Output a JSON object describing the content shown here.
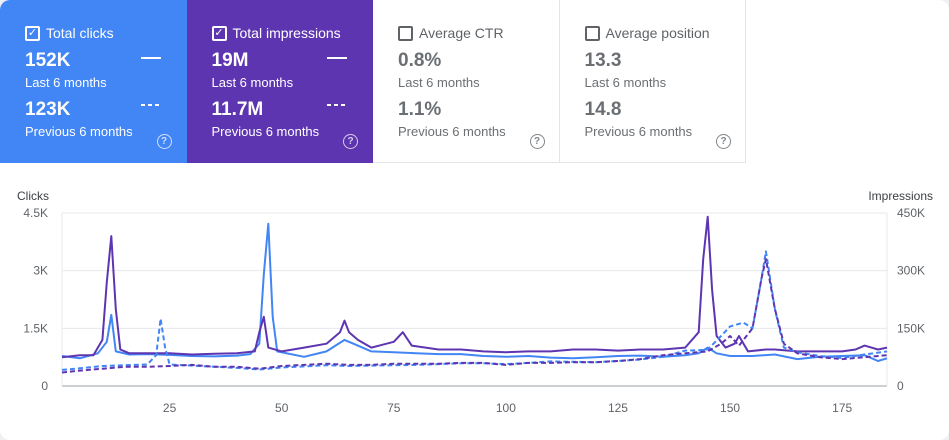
{
  "tiles": [
    {
      "label": "Total clicks",
      "checked": "✓",
      "value_current": "152K",
      "period_current": "Last 6 months",
      "value_previous": "123K",
      "period_previous": "Previous 6 months",
      "help": "?"
    },
    {
      "label": "Total impressions",
      "checked": "✓",
      "value_current": "19M",
      "period_current": "Last 6 months",
      "value_previous": "11.7M",
      "period_previous": "Previous 6 months",
      "help": "?"
    },
    {
      "label": "Average CTR",
      "checked": "",
      "value_current": "0.8%",
      "period_current": "Last 6 months",
      "value_previous": "1.1%",
      "period_previous": "Previous 6 months",
      "help": "?"
    },
    {
      "label": "Average position",
      "checked": "",
      "value_current": "13.3",
      "period_current": "Last 6 months",
      "value_previous": "14.8",
      "period_previous": "Previous 6 months",
      "help": "?"
    }
  ],
  "colors": {
    "clicks": "#4285f4",
    "impressions": "#5e35b1",
    "inactive_text": "#5f6368",
    "grid": "#dadce0"
  },
  "chart_data": {
    "type": "line",
    "xlabel": "",
    "ylabel_left": "Clicks",
    "ylabel_right": "Impressions",
    "xlim": [
      1,
      185
    ],
    "x_ticks": [
      "25",
      "50",
      "75",
      "100",
      "125",
      "150",
      "175"
    ],
    "y_left_ticks": [
      "0",
      "1.5K",
      "3K",
      "4.5K"
    ],
    "y_right_ticks": [
      "0",
      "150K",
      "300K",
      "450K"
    ],
    "ylim_left": [
      0,
      4500
    ],
    "ylim_right": [
      0,
      450000
    ],
    "grid": "horizontal",
    "series": [
      {
        "metric": "clicks",
        "period": "current",
        "style": "solid",
        "axis": "left",
        "points": [
          [
            1,
            780
          ],
          [
            5,
            720
          ],
          [
            9,
            850
          ],
          [
            11,
            1150
          ],
          [
            12,
            1850
          ],
          [
            13,
            900
          ],
          [
            16,
            820
          ],
          [
            20,
            830
          ],
          [
            25,
            810
          ],
          [
            30,
            780
          ],
          [
            35,
            770
          ],
          [
            40,
            790
          ],
          [
            43,
            830
          ],
          [
            45,
            1100
          ],
          [
            46,
            2900
          ],
          [
            47,
            4220
          ],
          [
            48,
            1800
          ],
          [
            49,
            900
          ],
          [
            55,
            760
          ],
          [
            60,
            900
          ],
          [
            64,
            1200
          ],
          [
            66,
            1100
          ],
          [
            70,
            900
          ],
          [
            75,
            880
          ],
          [
            80,
            850
          ],
          [
            85,
            830
          ],
          [
            90,
            830
          ],
          [
            95,
            780
          ],
          [
            100,
            760
          ],
          [
            105,
            780
          ],
          [
            110,
            740
          ],
          [
            115,
            720
          ],
          [
            120,
            750
          ],
          [
            125,
            780
          ],
          [
            130,
            790
          ],
          [
            135,
            760
          ],
          [
            140,
            800
          ],
          [
            143,
            850
          ],
          [
            145,
            1000
          ],
          [
            147,
            850
          ],
          [
            150,
            780
          ],
          [
            155,
            780
          ],
          [
            160,
            820
          ],
          [
            165,
            700
          ],
          [
            170,
            760
          ],
          [
            175,
            780
          ],
          [
            180,
            800
          ],
          [
            183,
            650
          ],
          [
            185,
            720
          ]
        ]
      },
      {
        "metric": "impressions",
        "period": "current",
        "style": "solid",
        "axis": "right",
        "points": [
          [
            1,
            75000
          ],
          [
            5,
            80000
          ],
          [
            8,
            80000
          ],
          [
            10,
            120000
          ],
          [
            11,
            270000
          ],
          [
            12,
            390000
          ],
          [
            13,
            200000
          ],
          [
            14,
            95000
          ],
          [
            16,
            85000
          ],
          [
            20,
            85000
          ],
          [
            25,
            85000
          ],
          [
            30,
            82000
          ],
          [
            35,
            84000
          ],
          [
            40,
            85000
          ],
          [
            44,
            90000
          ],
          [
            45,
            140000
          ],
          [
            46,
            180000
          ],
          [
            47,
            100000
          ],
          [
            50,
            90000
          ],
          [
            55,
            100000
          ],
          [
            60,
            110000
          ],
          [
            63,
            140000
          ],
          [
            64,
            170000
          ],
          [
            65,
            140000
          ],
          [
            67,
            120000
          ],
          [
            70,
            100000
          ],
          [
            75,
            115000
          ],
          [
            77,
            140000
          ],
          [
            79,
            105000
          ],
          [
            85,
            95000
          ],
          [
            90,
            95000
          ],
          [
            95,
            90000
          ],
          [
            100,
            88000
          ],
          [
            105,
            90000
          ],
          [
            110,
            90000
          ],
          [
            115,
            95000
          ],
          [
            120,
            95000
          ],
          [
            125,
            92000
          ],
          [
            130,
            95000
          ],
          [
            135,
            95000
          ],
          [
            140,
            100000
          ],
          [
            143,
            140000
          ],
          [
            144,
            330000
          ],
          [
            145,
            440000
          ],
          [
            146,
            250000
          ],
          [
            147,
            130000
          ],
          [
            149,
            100000
          ],
          [
            151,
            110000
          ],
          [
            152,
            130000
          ],
          [
            154,
            90000
          ],
          [
            158,
            95000
          ],
          [
            160,
            95000
          ],
          [
            165,
            90000
          ],
          [
            170,
            90000
          ],
          [
            175,
            90000
          ],
          [
            178,
            95000
          ],
          [
            180,
            105000
          ],
          [
            183,
            95000
          ],
          [
            185,
            100000
          ]
        ]
      },
      {
        "metric": "clicks",
        "period": "previous",
        "style": "dashed",
        "axis": "left",
        "points": [
          [
            1,
            420
          ],
          [
            5,
            460
          ],
          [
            10,
            520
          ],
          [
            15,
            540
          ],
          [
            20,
            560
          ],
          [
            22,
            800
          ],
          [
            23,
            1750
          ],
          [
            24,
            1000
          ],
          [
            25,
            560
          ],
          [
            30,
            530
          ],
          [
            35,
            500
          ],
          [
            40,
            470
          ],
          [
            45,
            430
          ],
          [
            50,
            480
          ],
          [
            55,
            510
          ],
          [
            60,
            540
          ],
          [
            65,
            520
          ],
          [
            70,
            530
          ],
          [
            75,
            540
          ],
          [
            80,
            550
          ],
          [
            85,
            570
          ],
          [
            90,
            590
          ],
          [
            95,
            590
          ],
          [
            100,
            570
          ],
          [
            105,
            600
          ],
          [
            110,
            640
          ],
          [
            115,
            630
          ],
          [
            120,
            620
          ],
          [
            125,
            650
          ],
          [
            130,
            690
          ],
          [
            135,
            760
          ],
          [
            140,
            920
          ],
          [
            143,
            930
          ],
          [
            145,
            950
          ],
          [
            148,
            1300
          ],
          [
            150,
            1550
          ],
          [
            153,
            1650
          ],
          [
            155,
            1500
          ],
          [
            157,
            2800
          ],
          [
            158,
            3500
          ],
          [
            160,
            2000
          ],
          [
            162,
            1000
          ],
          [
            165,
            880
          ],
          [
            170,
            780
          ],
          [
            175,
            730
          ],
          [
            180,
            820
          ],
          [
            185,
            900
          ]
        ]
      },
      {
        "metric": "impressions",
        "period": "previous",
        "style": "dashed",
        "axis": "right",
        "points": [
          [
            1,
            35000
          ],
          [
            5,
            40000
          ],
          [
            10,
            45000
          ],
          [
            15,
            50000
          ],
          [
            20,
            50000
          ],
          [
            25,
            52000
          ],
          [
            30,
            55000
          ],
          [
            35,
            50000
          ],
          [
            40,
            50000
          ],
          [
            45,
            45000
          ],
          [
            50,
            52000
          ],
          [
            55,
            55000
          ],
          [
            60,
            58000
          ],
          [
            65,
            55000
          ],
          [
            70,
            55000
          ],
          [
            75,
            58000
          ],
          [
            80,
            58000
          ],
          [
            85,
            58000
          ],
          [
            90,
            60000
          ],
          [
            95,
            60000
          ],
          [
            100,
            55000
          ],
          [
            105,
            60000
          ],
          [
            110,
            60000
          ],
          [
            115,
            62000
          ],
          [
            120,
            62000
          ],
          [
            125,
            65000
          ],
          [
            130,
            70000
          ],
          [
            135,
            80000
          ],
          [
            140,
            85000
          ],
          [
            145,
            90000
          ],
          [
            148,
            110000
          ],
          [
            150,
            130000
          ],
          [
            152,
            105000
          ],
          [
            155,
            150000
          ],
          [
            157,
            280000
          ],
          [
            158,
            330000
          ],
          [
            160,
            200000
          ],
          [
            162,
            110000
          ],
          [
            165,
            85000
          ],
          [
            170,
            75000
          ],
          [
            175,
            70000
          ],
          [
            180,
            75000
          ],
          [
            185,
            80000
          ]
        ]
      }
    ]
  }
}
